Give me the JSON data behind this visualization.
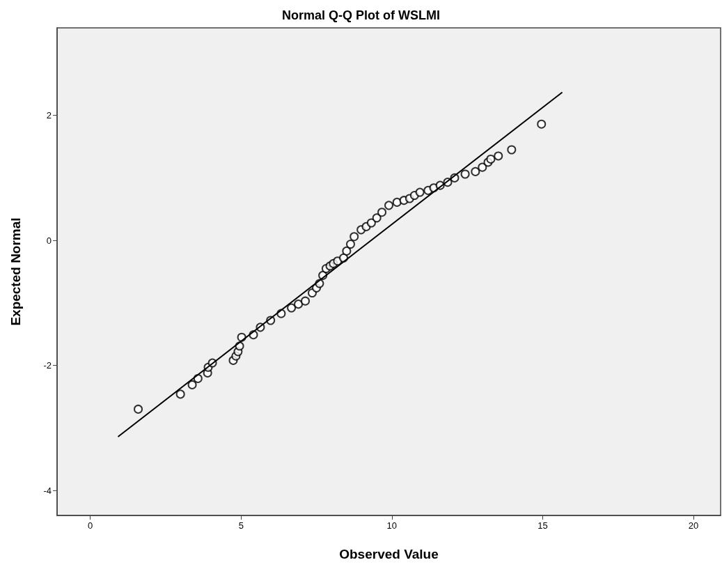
{
  "chart_data": {
    "type": "scatter",
    "title": "Normal Q-Q Plot of WSLMI",
    "xlabel": "Observed Value",
    "ylabel": "Expected Normal",
    "xlim": [
      -1.1,
      20.9
    ],
    "xticks": [
      0,
      5,
      10,
      15,
      20
    ],
    "ylim": [
      -4.4,
      3.4
    ],
    "yticks": [
      -4,
      -2,
      0,
      2
    ],
    "grid": false,
    "series": [
      {
        "marker": "circle",
        "color": "#000000",
        "x": [
          1.59,
          2.99,
          3.38,
          3.57,
          3.89,
          3.91,
          4.05,
          4.74,
          4.83,
          4.9,
          4.95,
          5.02,
          5.41,
          5.64,
          5.98,
          6.33,
          6.67,
          6.9,
          7.13,
          7.36,
          7.5,
          7.6,
          7.71,
          7.82,
          7.95,
          8.06,
          8.2,
          8.4,
          8.5,
          8.63,
          8.75,
          8.98,
          9.15,
          9.32,
          9.5,
          9.67,
          9.9,
          10.17,
          10.4,
          10.59,
          10.75,
          10.93,
          11.2,
          11.39,
          11.6,
          11.85,
          12.08,
          12.43,
          12.77,
          13.0,
          13.19,
          13.28,
          13.53,
          13.97,
          14.96
        ],
        "values": [
          -2.7,
          -2.46,
          -2.31,
          -2.21,
          -2.12,
          -2.03,
          -1.96,
          -1.92,
          -1.85,
          -1.78,
          -1.69,
          -1.55,
          -1.51,
          -1.39,
          -1.28,
          -1.17,
          -1.08,
          -1.02,
          -0.97,
          -0.84,
          -0.76,
          -0.69,
          -0.56,
          -0.45,
          -0.41,
          -0.37,
          -0.33,
          -0.28,
          -0.17,
          -0.06,
          0.06,
          0.17,
          0.22,
          0.28,
          0.36,
          0.45,
          0.56,
          0.61,
          0.64,
          0.67,
          0.72,
          0.77,
          0.8,
          0.84,
          0.88,
          0.93,
          1.0,
          1.06,
          1.1,
          1.17,
          1.25,
          1.3,
          1.35,
          1.45,
          1.86
        ]
      },
      {
        "type": "line",
        "color": "#000000",
        "x": [
          0.92,
          15.65
        ],
        "values": [
          -3.14,
          2.37
        ]
      }
    ]
  }
}
